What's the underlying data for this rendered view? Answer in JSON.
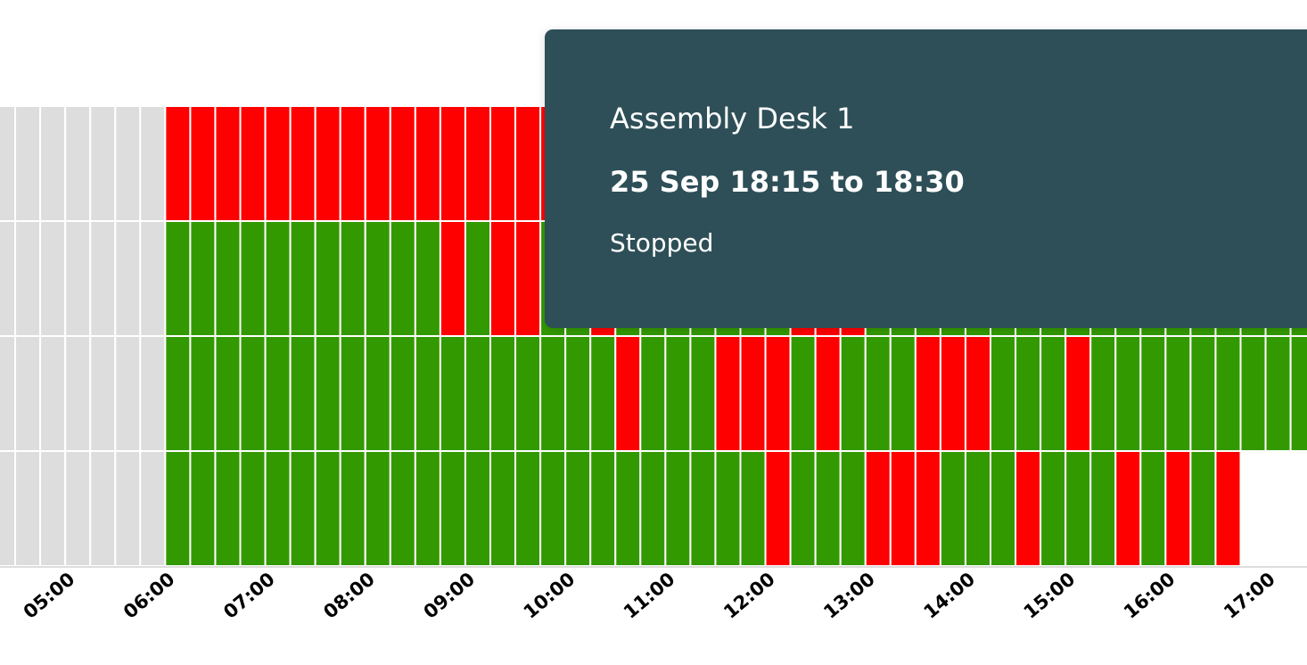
{
  "chart_data": {
    "type": "heatmap",
    "interval_minutes": 15,
    "x_start": "04:15",
    "status_colors": {
      "Running": "#339900",
      "Stopped": "#ff0000",
      "No data": "#dddddd"
    },
    "tick_labels": [
      "05:00",
      "06:00",
      "07:00",
      "08:00",
      "09:00",
      "10:00",
      "11:00",
      "12:00",
      "13:00",
      "14:00",
      "15:00",
      "16:00",
      "17:00"
    ],
    "rows": [
      "NNNNNNN SSSSSSSSSSSSSSSSSSSSSSSSSSSSSSSSSSSSSSSSSSSSSSSSSSSSSSSSSSSSS",
      "NNNNNNN RRRRRRRRRRRSRSSRRSRRRRRRRSSSRRRRRRRRRRRRRRRRRRRRRRRRRRRRRRRRR",
      "NNNNNNN RRRRRRRRRRRRRRRRRRSRRRSSSRSRRRSSSRRRSRRRRRRRRRRRR",
      "NNNNNNN RRRRRRRRRRRRRRRRRRRRRRRRSRRRSSSRRRSRRRSRSRS"
    ]
  },
  "tooltip": {
    "title": "Assembly Desk 1",
    "time": "25 Sep 18:15 to 18:30",
    "status": "Stopped"
  }
}
